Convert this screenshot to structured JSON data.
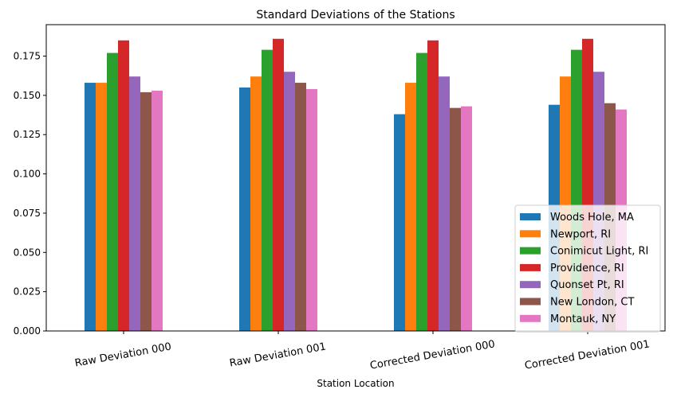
{
  "chart_data": {
    "type": "bar",
    "title": "Standard Deviations of the Stations",
    "xlabel": "Station Location",
    "ylabel": "",
    "ylim": [
      0,
      0.195
    ],
    "yticks": [
      "0.000",
      "0.025",
      "0.050",
      "0.075",
      "0.100",
      "0.125",
      "0.150",
      "0.175"
    ],
    "ytick_values": [
      0,
      0.025,
      0.05,
      0.075,
      0.1,
      0.125,
      0.15,
      0.175
    ],
    "categories": [
      "Raw Deviation 000",
      "Raw Deviation 001",
      "Corrected Deviation 000",
      "Corrected Deviation 001"
    ],
    "grid": false,
    "legend_position": "lower-right",
    "series": [
      {
        "name": "Woods Hole, MA",
        "color": "#1f77b4",
        "values": [
          0.158,
          0.155,
          0.138,
          0.144
        ]
      },
      {
        "name": "Newport, RI",
        "color": "#ff7f0e",
        "values": [
          0.158,
          0.162,
          0.158,
          0.162
        ]
      },
      {
        "name": "Conimicut Light, RI",
        "color": "#2ca02c",
        "values": [
          0.177,
          0.179,
          0.177,
          0.179
        ]
      },
      {
        "name": "Providence, RI",
        "color": "#d62728",
        "values": [
          0.185,
          0.186,
          0.185,
          0.186
        ]
      },
      {
        "name": "Quonset Pt, RI",
        "color": "#9467bd",
        "values": [
          0.162,
          0.165,
          0.162,
          0.165
        ]
      },
      {
        "name": "New London, CT",
        "color": "#8c564b",
        "values": [
          0.152,
          0.158,
          0.142,
          0.145
        ]
      },
      {
        "name": "Montauk, NY",
        "color": "#e377c2",
        "values": [
          0.153,
          0.154,
          0.143,
          0.141
        ]
      }
    ]
  }
}
